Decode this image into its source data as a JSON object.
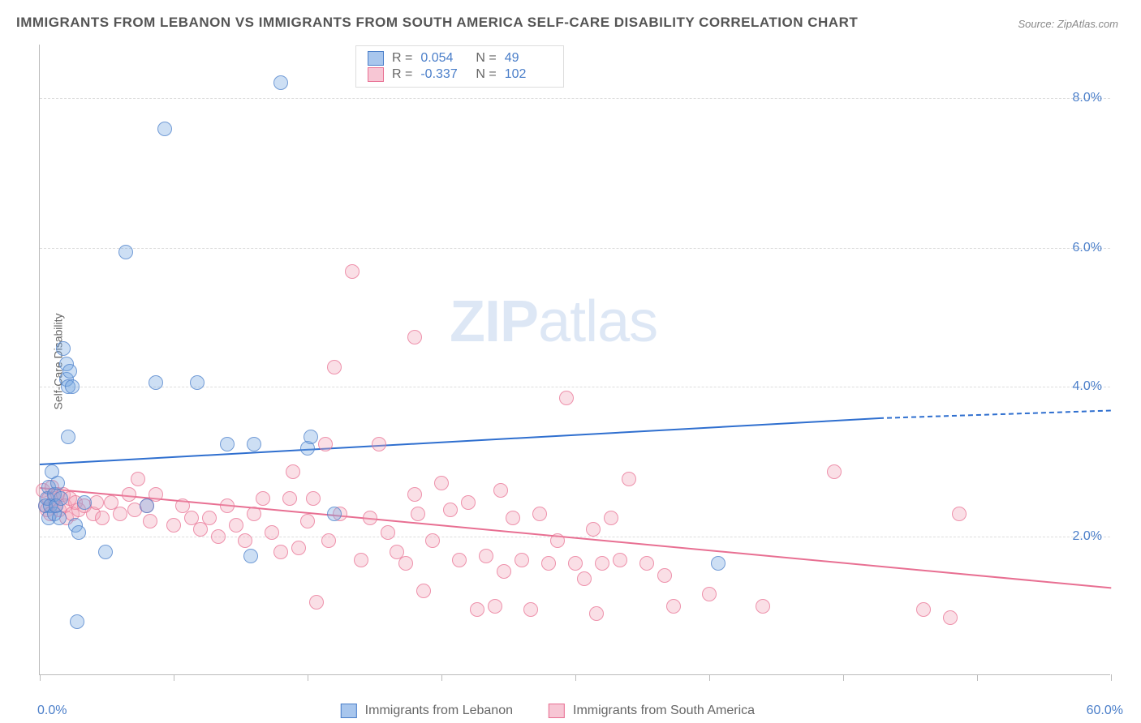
{
  "title": "IMMIGRANTS FROM LEBANON VS IMMIGRANTS FROM SOUTH AMERICA SELF-CARE DISABILITY CORRELATION CHART",
  "source": "Source: ZipAtlas.com",
  "y_axis_label": "Self-Care Disability",
  "watermark": {
    "bold": "ZIP",
    "light": "atlas"
  },
  "chart": {
    "type": "scatter",
    "xlim": [
      0,
      60
    ],
    "ylim": [
      0.5,
      8.7
    ],
    "x_ticks_minor": [
      0,
      7.5,
      15,
      22.5,
      30,
      37.5,
      45,
      52.5,
      60
    ],
    "x_tick_labels": [
      {
        "pos": 0,
        "text": "0.0%"
      },
      {
        "pos": 60,
        "text": "60.0%"
      }
    ],
    "y_gridlines": [
      2.3,
      4.25,
      6.05,
      8.0
    ],
    "y_tick_labels": [
      {
        "pos": 2.3,
        "text": "2.0%"
      },
      {
        "pos": 4.25,
        "text": "4.0%"
      },
      {
        "pos": 6.05,
        "text": "6.0%"
      },
      {
        "pos": 8.0,
        "text": "8.0%"
      }
    ],
    "marker_radius": 9,
    "marker_fill_opacity": 0.35,
    "marker_stroke_opacity": 0.7,
    "background_color": "#ffffff",
    "grid_color": "#dddddd",
    "series": [
      {
        "name": "Immigrants from Lebanon",
        "color": "#6fa3e0",
        "stroke": "#4a7ec9",
        "R": "0.054",
        "N": "49",
        "trend": {
          "x1": 0,
          "y1": 3.25,
          "x2": 47,
          "y2": 3.85,
          "color": "#2f6fcf",
          "dash_after_x": 47,
          "x2_dash": 60,
          "y2_dash": 3.95
        },
        "points": [
          [
            0.3,
            2.7
          ],
          [
            0.4,
            2.8
          ],
          [
            0.5,
            2.55
          ],
          [
            0.5,
            2.95
          ],
          [
            0.6,
            2.7
          ],
          [
            0.7,
            3.15
          ],
          [
            0.8,
            2.6
          ],
          [
            0.8,
            2.85
          ],
          [
            0.9,
            2.7
          ],
          [
            1.0,
            3.0
          ],
          [
            1.1,
            2.55
          ],
          [
            1.2,
            2.8
          ],
          [
            1.3,
            4.75
          ],
          [
            1.5,
            4.35
          ],
          [
            1.5,
            4.55
          ],
          [
            1.6,
            4.25
          ],
          [
            1.6,
            3.6
          ],
          [
            1.7,
            4.45
          ],
          [
            1.8,
            4.25
          ],
          [
            2.0,
            2.45
          ],
          [
            2.1,
            1.2
          ],
          [
            2.2,
            2.35
          ],
          [
            2.5,
            2.75
          ],
          [
            3.7,
            2.1
          ],
          [
            4.8,
            6.0
          ],
          [
            6.0,
            2.7
          ],
          [
            6.5,
            4.3
          ],
          [
            7.0,
            7.6
          ],
          [
            8.8,
            4.3
          ],
          [
            10.5,
            3.5
          ],
          [
            11.8,
            2.05
          ],
          [
            12.0,
            3.5
          ],
          [
            13.5,
            8.2
          ],
          [
            15.0,
            3.45
          ],
          [
            15.2,
            3.6
          ],
          [
            16.5,
            2.6
          ],
          [
            38.0,
            1.95
          ]
        ]
      },
      {
        "name": "Immigrants from South America",
        "color": "#f2a3b8",
        "stroke": "#e86f92",
        "R": "-0.337",
        "N": "102",
        "trend": {
          "x1": 0,
          "y1": 2.95,
          "x2": 60,
          "y2": 1.65,
          "color": "#e86f92"
        },
        "points": [
          [
            0.2,
            2.9
          ],
          [
            0.3,
            2.7
          ],
          [
            0.4,
            2.65
          ],
          [
            0.5,
            2.8
          ],
          [
            0.6,
            2.6
          ],
          [
            0.7,
            2.95
          ],
          [
            0.8,
            2.8
          ],
          [
            0.9,
            2.7
          ],
          [
            1.0,
            2.85
          ],
          [
            1.1,
            2.65
          ],
          [
            1.3,
            2.85
          ],
          [
            1.4,
            2.7
          ],
          [
            1.5,
            2.55
          ],
          [
            1.7,
            2.8
          ],
          [
            1.8,
            2.6
          ],
          [
            2.0,
            2.75
          ],
          [
            2.2,
            2.65
          ],
          [
            2.5,
            2.7
          ],
          [
            3.0,
            2.6
          ],
          [
            3.2,
            2.75
          ],
          [
            3.5,
            2.55
          ],
          [
            4.0,
            2.75
          ],
          [
            4.5,
            2.6
          ],
          [
            5.0,
            2.85
          ],
          [
            5.3,
            2.65
          ],
          [
            5.5,
            3.05
          ],
          [
            6.0,
            2.7
          ],
          [
            6.2,
            2.5
          ],
          [
            6.5,
            2.85
          ],
          [
            7.5,
            2.45
          ],
          [
            8.0,
            2.7
          ],
          [
            8.5,
            2.55
          ],
          [
            9.0,
            2.4
          ],
          [
            9.5,
            2.55
          ],
          [
            10.0,
            2.3
          ],
          [
            10.5,
            2.7
          ],
          [
            11.0,
            2.45
          ],
          [
            11.5,
            2.25
          ],
          [
            12.0,
            2.6
          ],
          [
            12.5,
            2.8
          ],
          [
            13.0,
            2.35
          ],
          [
            13.5,
            2.1
          ],
          [
            14.0,
            2.8
          ],
          [
            14.2,
            3.15
          ],
          [
            14.5,
            2.15
          ],
          [
            15.0,
            2.5
          ],
          [
            15.3,
            2.8
          ],
          [
            15.5,
            1.45
          ],
          [
            16.0,
            3.5
          ],
          [
            16.2,
            2.25
          ],
          [
            16.5,
            4.5
          ],
          [
            16.8,
            2.6
          ],
          [
            17.5,
            5.75
          ],
          [
            18.0,
            2.0
          ],
          [
            18.5,
            2.55
          ],
          [
            19.0,
            3.5
          ],
          [
            19.5,
            2.35
          ],
          [
            20.0,
            2.1
          ],
          [
            20.5,
            1.95
          ],
          [
            21.0,
            2.85
          ],
          [
            21.0,
            4.9
          ],
          [
            21.2,
            2.6
          ],
          [
            21.5,
            1.6
          ],
          [
            22.0,
            2.25
          ],
          [
            22.5,
            3.0
          ],
          [
            23.0,
            2.65
          ],
          [
            23.5,
            2.0
          ],
          [
            24.0,
            2.75
          ],
          [
            24.5,
            1.35
          ],
          [
            25.0,
            2.05
          ],
          [
            25.5,
            1.4
          ],
          [
            25.8,
            2.9
          ],
          [
            26.0,
            1.85
          ],
          [
            26.5,
            2.55
          ],
          [
            27.0,
            2.0
          ],
          [
            27.5,
            1.35
          ],
          [
            28.0,
            2.6
          ],
          [
            28.5,
            1.95
          ],
          [
            29.0,
            2.25
          ],
          [
            29.5,
            4.1
          ],
          [
            30.0,
            1.95
          ],
          [
            30.5,
            1.75
          ],
          [
            31.0,
            2.4
          ],
          [
            31.2,
            1.3
          ],
          [
            31.5,
            1.95
          ],
          [
            32.0,
            2.55
          ],
          [
            32.5,
            2.0
          ],
          [
            33.0,
            3.05
          ],
          [
            34.0,
            1.95
          ],
          [
            35.0,
            1.8
          ],
          [
            35.5,
            1.4
          ],
          [
            37.5,
            1.55
          ],
          [
            40.5,
            1.4
          ],
          [
            44.5,
            3.15
          ],
          [
            49.5,
            1.35
          ],
          [
            51.0,
            1.25
          ],
          [
            51.5,
            2.6
          ]
        ]
      }
    ]
  },
  "legend_bottom": [
    {
      "label": "Immigrants from Lebanon",
      "fill": "#a8c6ed",
      "stroke": "#4a7ec9"
    },
    {
      "label": "Immigrants from South America",
      "fill": "#f7c6d4",
      "stroke": "#e86f92"
    }
  ]
}
